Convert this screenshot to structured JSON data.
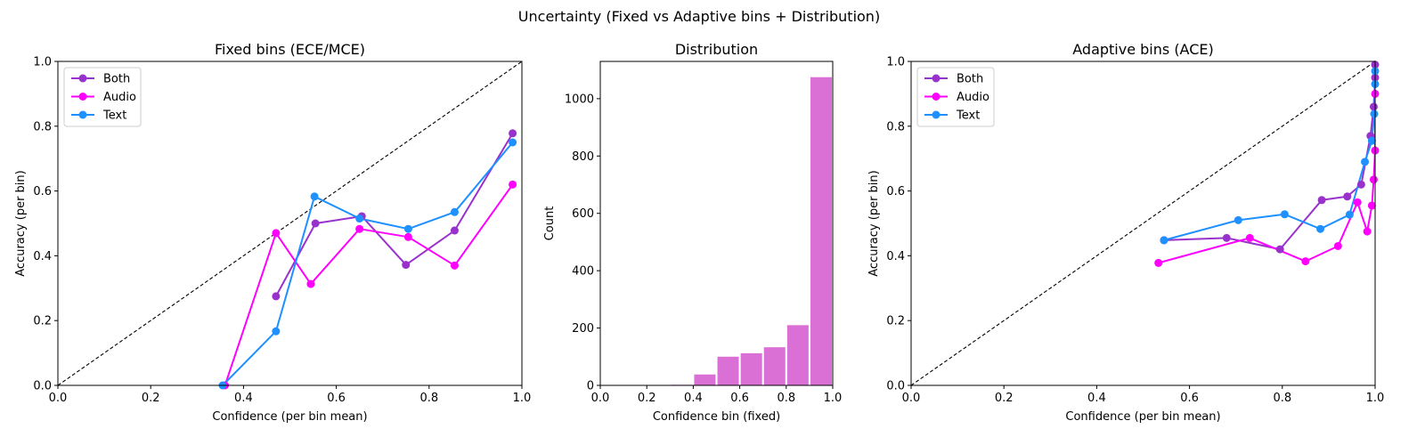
{
  "figure": {
    "suptitle": "Uncertainty (Fixed vs Adaptive bins + Distribution)"
  },
  "chart_data": [
    {
      "type": "line",
      "title": "Fixed bins (ECE/MCE)",
      "xlabel": "Confidence (per bin mean)",
      "ylabel": "Accuracy (per bin)",
      "xlim": [
        0,
        1
      ],
      "ylim": [
        0,
        1
      ],
      "xticks": [
        "0.0",
        "0.2",
        "0.4",
        "0.6",
        "0.8",
        "1.0"
      ],
      "yticks": [
        "0.0",
        "0.2",
        "0.4",
        "0.6",
        "0.8",
        "1.0"
      ],
      "diagonal": true,
      "legend": "top-left",
      "series": [
        {
          "name": "Both",
          "color": "#9932CC",
          "x": [
            0.47,
            0.555,
            0.655,
            0.75,
            0.855,
            0.98
          ],
          "y": [
            0.275,
            0.5,
            0.522,
            0.372,
            0.478,
            0.778
          ]
        },
        {
          "name": "Audio",
          "color": "#FF00FF",
          "x": [
            0.36,
            0.47,
            0.545,
            0.65,
            0.755,
            0.855,
            0.98
          ],
          "y": [
            0.0,
            0.47,
            0.313,
            0.483,
            0.458,
            0.37,
            0.62
          ]
        },
        {
          "name": "Text",
          "color": "#1E90FF",
          "x": [
            0.355,
            0.47,
            0.553,
            0.65,
            0.755,
            0.855,
            0.98
          ],
          "y": [
            0.0,
            0.167,
            0.583,
            0.515,
            0.483,
            0.535,
            0.75
          ]
        }
      ]
    },
    {
      "type": "bar",
      "title": "Distribution",
      "xlabel": "Confidence bin (fixed)",
      "ylabel": "Count",
      "xlim": [
        0,
        1
      ],
      "ylim": [
        0,
        1130
      ],
      "xticks": [
        "0.0",
        "0.2",
        "0.4",
        "0.6",
        "0.8",
        "1.0"
      ],
      "yticks": [
        "0",
        "200",
        "400",
        "600",
        "800",
        "1000"
      ],
      "color": "#DA70D6",
      "bins": [
        0.0,
        0.1,
        0.2,
        0.3,
        0.4,
        0.5,
        0.6,
        0.7,
        0.8,
        0.9
      ],
      "bin_width": 0.1,
      "values": [
        0,
        0,
        0,
        2,
        38,
        100,
        112,
        133,
        210,
        1075
      ]
    },
    {
      "type": "line",
      "title": "Adaptive bins (ACE)",
      "xlabel": "Confidence (per bin mean)",
      "ylabel": "Accuracy (per bin)",
      "xlim": [
        0,
        1
      ],
      "ylim": [
        0,
        1
      ],
      "xticks": [
        "0.0",
        "0.2",
        "0.4",
        "0.6",
        "0.8",
        "1.0"
      ],
      "yticks": [
        "0.0",
        "0.2",
        "0.4",
        "0.6",
        "0.8",
        "1.0"
      ],
      "diagonal": true,
      "legend": "top-left",
      "series": [
        {
          "name": "Both",
          "color": "#9932CC",
          "x": [
            0.545,
            0.68,
            0.795,
            0.885,
            0.94,
            0.97,
            0.99,
            0.997,
            1.0,
            1.0
          ],
          "y": [
            0.448,
            0.455,
            0.42,
            0.572,
            0.583,
            0.62,
            0.77,
            0.86,
            0.95,
            0.99
          ]
        },
        {
          "name": "Audio",
          "color": "#FF00FF",
          "x": [
            0.533,
            0.73,
            0.85,
            0.92,
            0.962,
            0.983,
            0.993,
            0.997,
            1.0,
            1.0
          ],
          "y": [
            0.378,
            0.455,
            0.383,
            0.43,
            0.565,
            0.475,
            0.555,
            0.635,
            0.725,
            0.9
          ]
        },
        {
          "name": "Text",
          "color": "#1E90FF",
          "x": [
            0.545,
            0.705,
            0.805,
            0.882,
            0.945,
            0.978,
            0.993,
            0.998,
            1.0,
            1.0
          ],
          "y": [
            0.448,
            0.51,
            0.528,
            0.483,
            0.527,
            0.69,
            0.755,
            0.838,
            0.93,
            0.97
          ]
        }
      ]
    }
  ]
}
